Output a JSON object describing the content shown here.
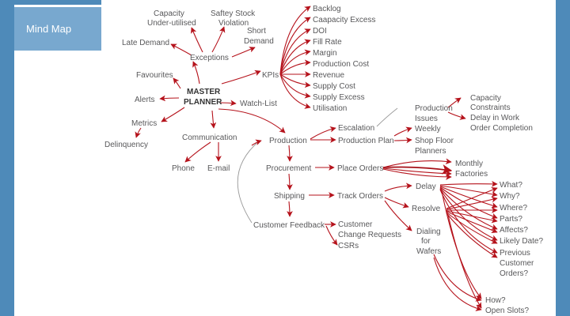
{
  "sidebar": {
    "items": [
      {
        "label": "Mind Map",
        "active": true
      }
    ]
  },
  "colors": {
    "background": "#4e8ab9",
    "nav_active": "#78a8cf",
    "arrow": "#b5121b",
    "label": "#58585a"
  },
  "mindmap": {
    "center": {
      "line1": "MASTER",
      "line2": "PLANNER"
    },
    "exceptions": "Exceptions",
    "capacity_line1": "Capacity",
    "capacity_line2": "Under-utilised",
    "safety_line1": "Saftey Stock",
    "safety_line2": "Violation",
    "short_line1": "Short",
    "short_line2": "Demand",
    "late_demand": "Late Demand",
    "favourites": "Favourites",
    "alerts": "Alerts",
    "metrics": "Metrics",
    "delinquency": "Delinquency",
    "communication": "Communication",
    "phone": "Phone",
    "email": "E-mail",
    "watchlist": "Watch-List",
    "kpis": "KPIs",
    "kpi_items": [
      "Backlog",
      "Caapacity Excess",
      "DOI",
      "Fill Rate",
      "Margin",
      "Production Cost",
      "Revenue",
      "Supply Cost",
      "Supply Excess",
      "Utilisation"
    ],
    "production": "Production",
    "escalation": "Escalation",
    "production_plan": "Production Plan",
    "production_issues_line1": "Production",
    "production_issues_line2": "Issues",
    "capacity_constraints_line1": "Capacity",
    "capacity_constraints_line2": "Constraints",
    "delay_work_line1": "Delay in Work",
    "delay_work_line2": "Order Completion",
    "weekly": "Weekly",
    "shop_floor_line1": "Shop Floor",
    "shop_floor_line2": "Planners",
    "procurement": "Procurement",
    "place_orders": "Place Orders",
    "monthly": "Monthly",
    "factories": "Factories",
    "shipping": "Shipping",
    "track_orders": "Track Orders",
    "delay": "Delay",
    "resolve": "Resolve",
    "dialing_line1": "Dialing",
    "dialing_line2": "for",
    "dialing_line3": "Wafers",
    "questions": [
      "What?",
      "Why?",
      "Where?",
      "Parts?",
      "Affects?",
      "Likely Date?"
    ],
    "previous_line1": "Previous",
    "previous_line2": "Customer",
    "previous_line3": "Orders?",
    "how": "How?",
    "open_slots": "Open Slots?",
    "customer_feedback": "Customer Feedback",
    "customer_change_line1": "Customer",
    "customer_change_line2": "Change Requests",
    "csrs": "CSRs"
  }
}
